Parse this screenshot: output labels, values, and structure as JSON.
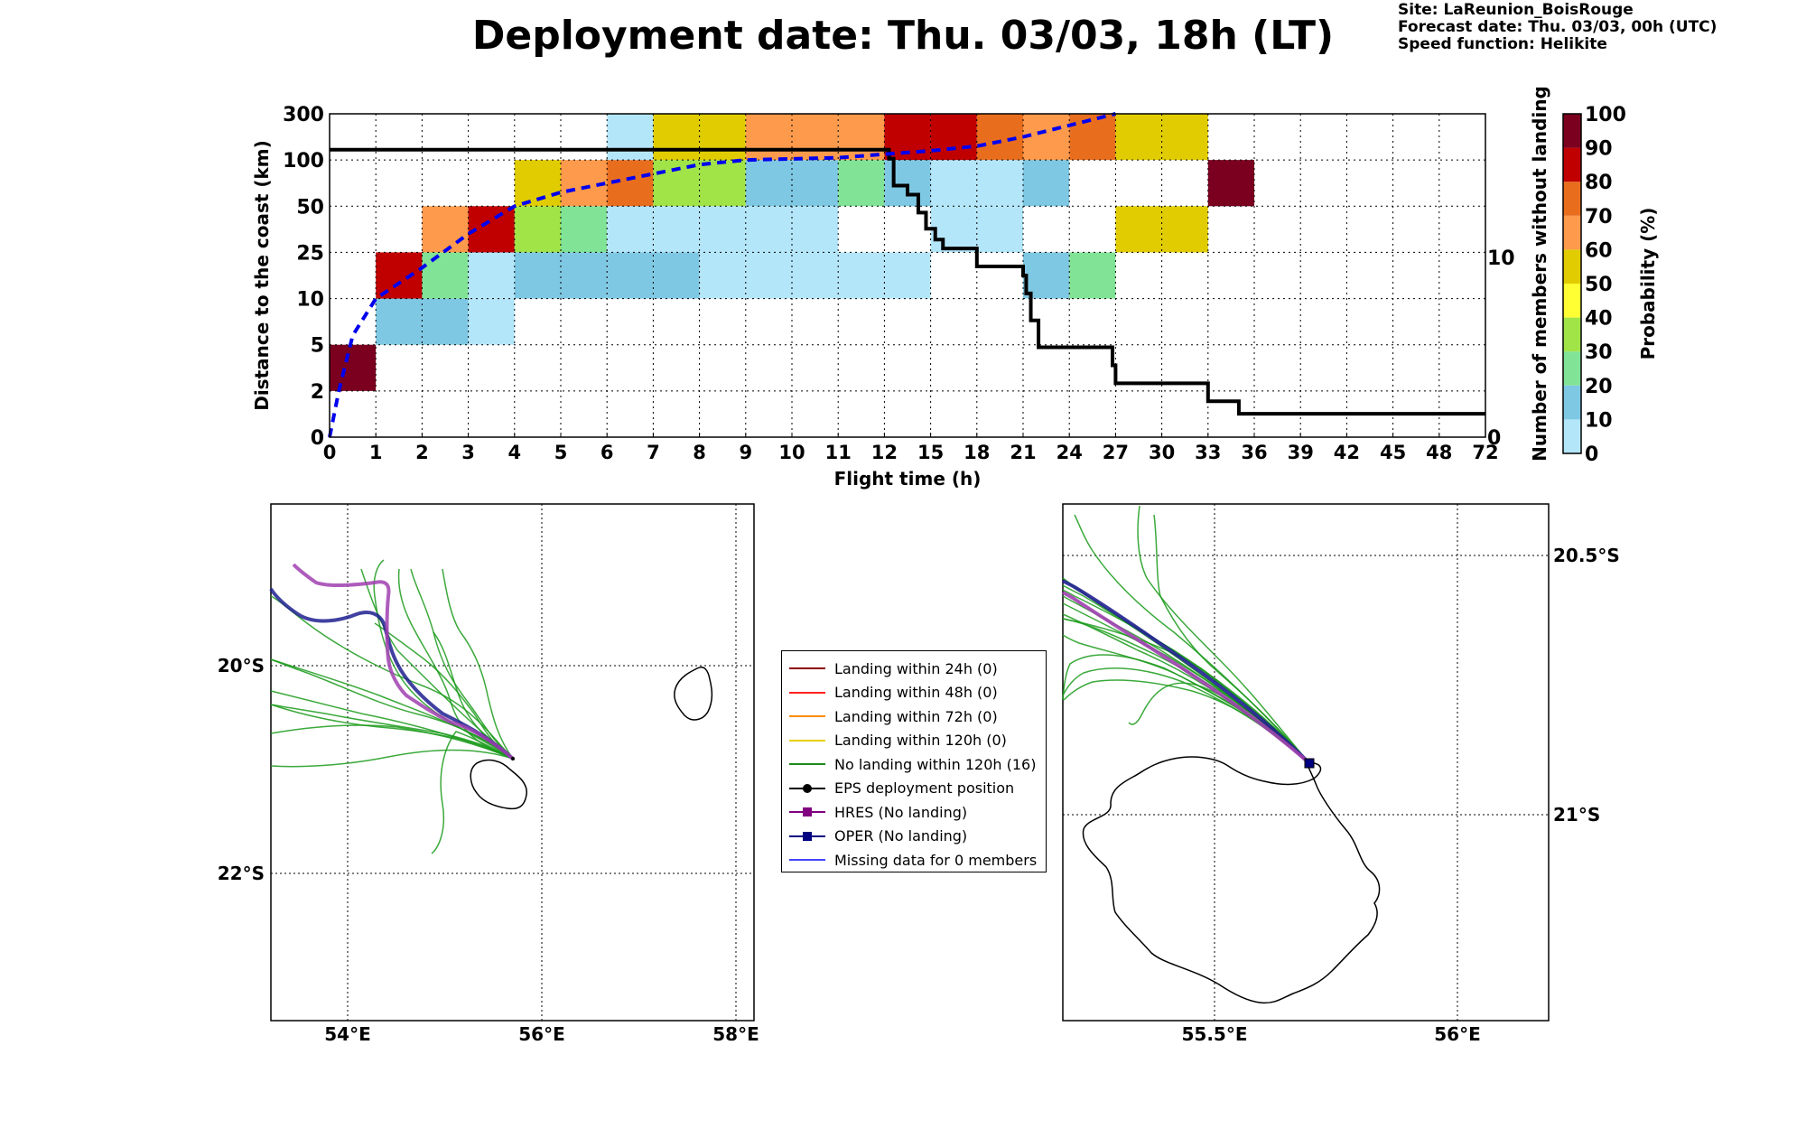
{
  "title": "Deployment date: Thu. 03/03, 18h (LT)",
  "site_info": {
    "site": "Site: LaReunion_BoisRouge",
    "forecast": "Forecast date: Thu. 03/03, 00h (UTC)",
    "speed": "Speed function: Helikite"
  },
  "colors": {
    "prob_0": "#b4e6fa",
    "prob_10": "#7ec8e3",
    "prob_20": "#80e396",
    "prob_30": "#a0e448",
    "prob_40": "#ffff33",
    "prob_50": "#e0cc00",
    "prob_60": "#fd9a4c",
    "prob_70": "#e86e1e",
    "prob_80": "#c00000",
    "prob_90": "#7b0020",
    "members_line": "#000000",
    "median_line": "#0000ee",
    "ens_track": "#1a9a1a",
    "hres_track": "#a040b0",
    "oper_track": "#202090"
  },
  "chart_data": [
    {
      "type": "heatmap",
      "xlabel": "Flight time (h)",
      "ylabel": "Distance to the coast (km)",
      "y2label": "Number of members without landing",
      "colorbar_label": "Probability (%)",
      "x_ticks": [
        "0",
        "1",
        "2",
        "3",
        "4",
        "5",
        "6",
        "7",
        "8",
        "9",
        "10",
        "11",
        "12",
        "15",
        "18",
        "21",
        "24",
        "27",
        "30",
        "33",
        "36",
        "39",
        "42",
        "45",
        "48",
        "72"
      ],
      "y_ticks": [
        "0",
        "2",
        "5",
        "10",
        "25",
        "50",
        "100",
        "300"
      ],
      "y2_ticks": [
        "0",
        "10"
      ],
      "colorbar_ticks": [
        "0",
        "10",
        "20",
        "30",
        "40",
        "50",
        "60",
        "70",
        "80",
        "90",
        "100"
      ],
      "grid": true,
      "cells": [
        {
          "x": "0-1",
          "y": "2-5",
          "p": 95
        },
        {
          "x": "1-2",
          "y": "5-10",
          "p": 12
        },
        {
          "x": "1-2",
          "y": "10-25",
          "p": 85
        },
        {
          "x": "2-3",
          "y": "5-10",
          "p": 12
        },
        {
          "x": "2-3",
          "y": "10-25",
          "p": 25
        },
        {
          "x": "2-3",
          "y": "25-50",
          "p": 65
        },
        {
          "x": "3-4",
          "y": "5-10",
          "p": 5
        },
        {
          "x": "3-4",
          "y": "10-25",
          "p": 5
        },
        {
          "x": "3-4",
          "y": "25-50",
          "p": 85
        },
        {
          "x": "4-5",
          "y": "10-25",
          "p": 12
        },
        {
          "x": "4-5",
          "y": "25-50",
          "p": 35
        },
        {
          "x": "4-5",
          "y": "50-100",
          "p": 55
        },
        {
          "x": "5-6",
          "y": "10-25",
          "p": 12
        },
        {
          "x": "5-6",
          "y": "25-50",
          "p": 25
        },
        {
          "x": "5-6",
          "y": "50-100",
          "p": 65
        },
        {
          "x": "6-7",
          "y": "10-25",
          "p": 12
        },
        {
          "x": "6-7",
          "y": "25-50",
          "p": 5
        },
        {
          "x": "6-7",
          "y": "50-100",
          "p": 75
        },
        {
          "x": "6-7",
          "y": "100-300",
          "p": 5
        },
        {
          "x": "7-8",
          "y": "10-25",
          "p": 12
        },
        {
          "x": "7-8",
          "y": "25-50",
          "p": 5
        },
        {
          "x": "7-8",
          "y": "50-100",
          "p": 35
        },
        {
          "x": "7-8",
          "y": "100-300",
          "p": 55
        },
        {
          "x": "8-9",
          "y": "10-25",
          "p": 5
        },
        {
          "x": "8-9",
          "y": "25-50",
          "p": 5
        },
        {
          "x": "8-9",
          "y": "50-100",
          "p": 35
        },
        {
          "x": "8-9",
          "y": "100-300",
          "p": 55
        },
        {
          "x": "9-10",
          "y": "10-25",
          "p": 5
        },
        {
          "x": "9-10",
          "y": "25-50",
          "p": 5
        },
        {
          "x": "9-10",
          "y": "50-100",
          "p": 12
        },
        {
          "x": "9-10",
          "y": "100-300",
          "p": 65
        },
        {
          "x": "10-11",
          "y": "10-25",
          "p": 5
        },
        {
          "x": "10-11",
          "y": "25-50",
          "p": 5
        },
        {
          "x": "10-11",
          "y": "50-100",
          "p": 12
        },
        {
          "x": "10-11",
          "y": "100-300",
          "p": 65
        },
        {
          "x": "11-12",
          "y": "10-25",
          "p": 5
        },
        {
          "x": "11-12",
          "y": "50-100",
          "p": 25
        },
        {
          "x": "11-12",
          "y": "100-300",
          "p": 65
        },
        {
          "x": "12-15",
          "y": "10-25",
          "p": 5
        },
        {
          "x": "12-15",
          "y": "50-100",
          "p": 12
        },
        {
          "x": "12-15",
          "y": "100-300",
          "p": 85
        },
        {
          "x": "15-18",
          "y": "25-50",
          "p": 5
        },
        {
          "x": "15-18",
          "y": "50-100",
          "p": 5
        },
        {
          "x": "15-18",
          "y": "100-300",
          "p": 85
        },
        {
          "x": "18-21",
          "y": "25-50",
          "p": 5
        },
        {
          "x": "18-21",
          "y": "50-100",
          "p": 5
        },
        {
          "x": "18-21",
          "y": "100-300",
          "p": 75
        },
        {
          "x": "21-24",
          "y": "10-25",
          "p": 12
        },
        {
          "x": "21-24",
          "y": "50-100",
          "p": 12
        },
        {
          "x": "21-24",
          "y": "100-300",
          "p": 65
        },
        {
          "x": "24-27",
          "y": "10-25",
          "p": 25
        },
        {
          "x": "24-27",
          "y": "100-300",
          "p": 75
        },
        {
          "x": "27-30",
          "y": "25-50",
          "p": 55
        },
        {
          "x": "27-30",
          "y": "100-300",
          "p": 55
        },
        {
          "x": "30-33",
          "y": "25-50",
          "p": 55
        },
        {
          "x": "30-33",
          "y": "100-300",
          "p": 55
        },
        {
          "x": "33-36",
          "y": "50-100",
          "p": 95
        }
      ],
      "series": [
        {
          "kind": "step",
          "axis": "right",
          "x": [
            "0",
            "12",
            "12.3",
            "12.6",
            "13.5",
            "14.2",
            "14.7",
            "15.3",
            "15.8",
            "18",
            "18",
            "21",
            "21.2",
            "21.5",
            "22",
            "23.3",
            "25",
            "26.8",
            "27",
            "33",
            "35",
            "72"
          ],
          "y": [
            16,
            16,
            15.5,
            14,
            13.5,
            12.5,
            11.6,
            11,
            10.5,
            10.5,
            9.5,
            9,
            8,
            6.5,
            5,
            5,
            5,
            4,
            3,
            2,
            1.3,
            1.3
          ]
        },
        {
          "kind": "dashed",
          "axis": "left",
          "x": [
            "0",
            "0.2",
            "0.5",
            "1",
            "2",
            "3",
            "4",
            "5",
            "6",
            "7",
            "8",
            "9",
            "10",
            "11",
            "12",
            "15",
            "18",
            "21",
            "24",
            "27"
          ],
          "y": [
            0,
            2,
            6,
            10,
            20,
            35,
            50,
            65,
            75,
            85,
            95,
            100,
            105,
            110,
            125,
            140,
            160,
            200,
            250,
            300
          ]
        }
      ]
    },
    {
      "type": "map",
      "x_ticks": [
        "54°E",
        "56°E",
        "58°E"
      ],
      "y_ticks": [
        "20°S",
        "22°S"
      ]
    },
    {
      "type": "map",
      "x_ticks": [
        "55.5°E",
        "56°E"
      ],
      "y_ticks": [
        "20.5°S",
        "21°S"
      ]
    }
  ],
  "legend": {
    "items": [
      {
        "label": "Landing within 24h (0)",
        "color": "#8b0000",
        "marker": "none"
      },
      {
        "label": "Landing within 48h (0)",
        "color": "#ff2020",
        "marker": "none"
      },
      {
        "label": "Landing within 72h (0)",
        "color": "#ff8c00",
        "marker": "none"
      },
      {
        "label": "Landing within 120h (0)",
        "color": "#e8d000",
        "marker": "none"
      },
      {
        "label": "No landing within 120h (16)",
        "color": "#1a8a1a",
        "marker": "none"
      },
      {
        "label": "EPS deployment position",
        "color": "#000000",
        "marker": "circle"
      },
      {
        "label": "HRES (No landing)",
        "color": "#800080",
        "marker": "square"
      },
      {
        "label": "OPER (No landing)",
        "color": "#000080",
        "marker": "square"
      },
      {
        "label": "Missing data for 0 members",
        "color": "#4444ff",
        "marker": "none"
      }
    ]
  }
}
